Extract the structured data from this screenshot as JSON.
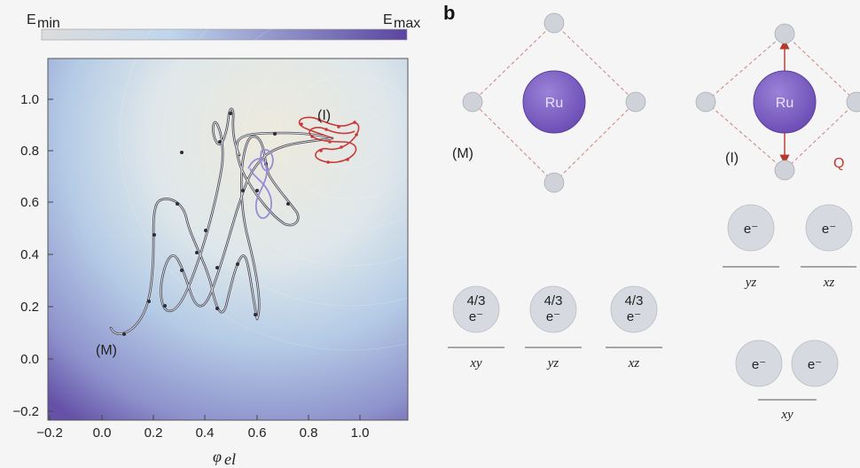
{
  "panel_a": {
    "colorbar": {
      "min_label": "E",
      "min_sub": "min",
      "max_label": "E",
      "max_sub": "max",
      "colors": [
        "#d6d6d6",
        "#b8d2ea",
        "#5b46a0"
      ]
    },
    "x_axis": {
      "label": "φ",
      "label_sub": "el",
      "ticks": [
        "−0.2",
        "0.0",
        "0.2",
        "0.4",
        "0.6",
        "0.8",
        "1.0"
      ]
    },
    "y_axis": {
      "ticks": [
        "1.0",
        "0.8",
        "0.6",
        "0.4",
        "0.2",
        "0.0",
        "−0.2"
      ]
    },
    "state_M": "(M)",
    "state_I": "(I)"
  },
  "panel_b": {
    "letter": "b",
    "state_M": "(M)",
    "state_I": "(I)",
    "atom_label": "Ru",
    "distortion_label": "Q",
    "M_orbitals": [
      {
        "occupancy": "4/3",
        "electron": "e⁻",
        "label": "xy"
      },
      {
        "occupancy": "4/3",
        "electron": "e⁻",
        "label": "yz"
      },
      {
        "occupancy": "4/3",
        "electron": "e⁻",
        "label": "xz"
      }
    ],
    "I_orbitals_upper": [
      {
        "electron": "e⁻",
        "label": "yz"
      },
      {
        "electron": "e⁻",
        "label": "xz"
      }
    ],
    "I_orbitals_lower": {
      "electrons": [
        "e⁻",
        "e⁻"
      ],
      "label": "xy"
    },
    "colors": {
      "ru": "#7a5cc0",
      "ligand": "#cfd3d9",
      "orbital": "#d6dae0",
      "dashed": "#d08a8a",
      "arrow": "#b5392c"
    }
  }
}
